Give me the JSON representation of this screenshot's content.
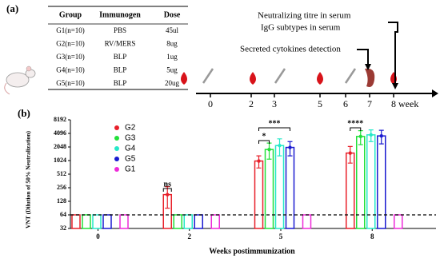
{
  "panel_a": {
    "label": "(a)",
    "table": {
      "header": [
        "Group",
        "Immunogen",
        "Dose"
      ],
      "rows": [
        [
          "G1(n=10)",
          "PBS",
          "45ul"
        ],
        [
          "G2(n=10)",
          "RV/MERS",
          "8ug"
        ],
        [
          "G3(n=10)",
          "BLP",
          "1ug"
        ],
        [
          "G4(n=10)",
          "BLP",
          "5ug"
        ],
        [
          "G5(n=10)",
          "BLP",
          "20ug"
        ]
      ]
    },
    "timeline": {
      "labels": [
        "0",
        "2",
        "3",
        "5",
        "6",
        "7",
        "8"
      ],
      "unit": "week"
    },
    "annotations": [
      "Neutralizing titre in serum",
      "IgG subtypes in serum",
      "Secreted cytokines detection"
    ]
  },
  "chart_data": {
    "type": "bar",
    "label": "(b)",
    "xlabel": "Weeks postimmunization",
    "ylabel": "VNT (Dilution of 50% Neutralization)",
    "categories": [
      "0",
      "2",
      "5",
      "8"
    ],
    "series": [
      {
        "name": "G2",
        "color": "#e8202a",
        "values": [
          64,
          180,
          1000,
          1500
        ],
        "errors": [
          0,
          90,
          300,
          600
        ]
      },
      {
        "name": "G3",
        "color": "#22e03a",
        "values": [
          64,
          64,
          1800,
          3500
        ],
        "errors": [
          0,
          0,
          700,
          1200
        ]
      },
      {
        "name": "G4",
        "color": "#26e8c8",
        "values": [
          64,
          64,
          2200,
          3800
        ],
        "errors": [
          0,
          0,
          900,
          1100
        ]
      },
      {
        "name": "G5",
        "color": "#1a1ad0",
        "values": [
          64,
          64,
          2000,
          3600
        ],
        "errors": [
          0,
          0,
          700,
          1200
        ]
      },
      {
        "name": "G1",
        "color": "#ee2ad8",
        "values": [
          64,
          64,
          64,
          64
        ],
        "errors": [
          0,
          0,
          0,
          0
        ]
      }
    ],
    "ylim": [
      32,
      8192
    ],
    "yticks": [
      32,
      64,
      128,
      256,
      512,
      1024,
      2048,
      4096,
      8192
    ],
    "log_scale": 2,
    "reference_line": 64,
    "legend": "upper left",
    "significance": [
      "ns",
      "*",
      "***",
      "****"
    ]
  }
}
